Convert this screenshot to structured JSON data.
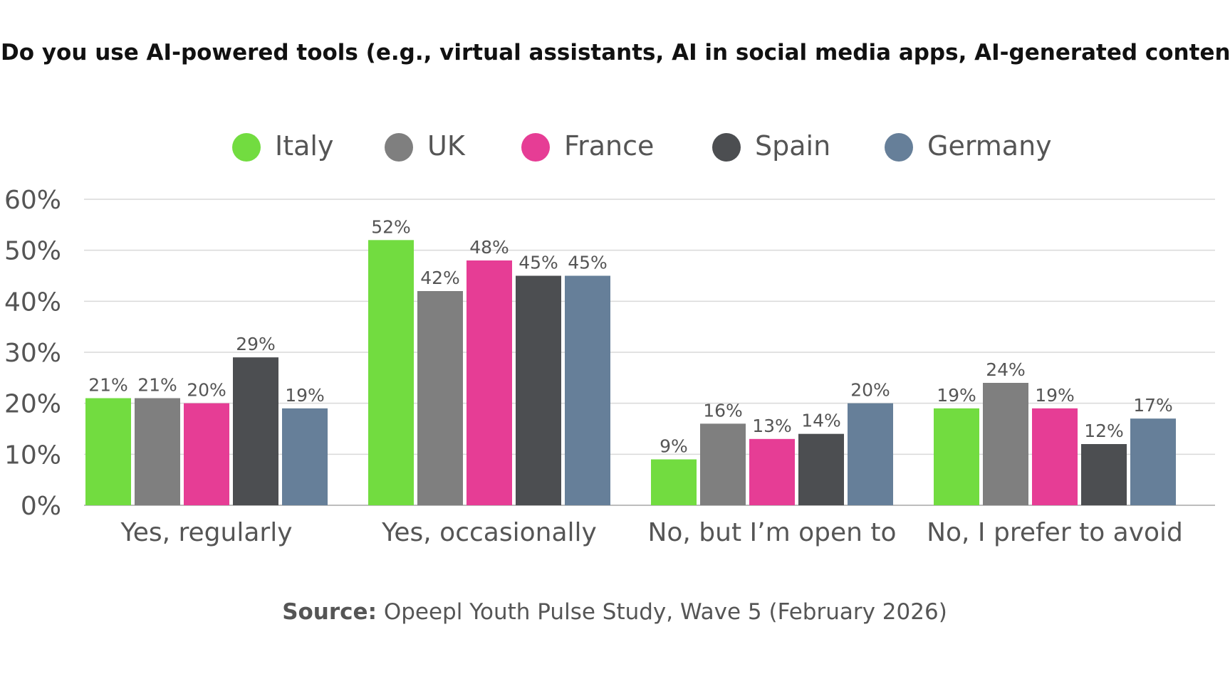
{
  "chart_data": {
    "type": "bar",
    "title": "Q: Do you use AI-powered tools (e.g., virtual assistants, AI in social media apps, AI-generated content)?",
    "categories": [
      "Yes, regularly",
      "Yes, occasionally",
      "No, but I’m open to",
      "No, I prefer to avoid"
    ],
    "series": [
      {
        "name": "Italy",
        "color": "#72dc40",
        "values": [
          21,
          52,
          9,
          19
        ]
      },
      {
        "name": "UK",
        "color": "#7f7f7f",
        "values": [
          21,
          42,
          16,
          24
        ]
      },
      {
        "name": "France",
        "color": "#e63d95",
        "values": [
          20,
          48,
          13,
          19
        ]
      },
      {
        "name": "Spain",
        "color": "#4c4e51",
        "values": [
          29,
          45,
          14,
          12
        ]
      },
      {
        "name": "Germany",
        "color": "#667f99",
        "values": [
          19,
          45,
          20,
          17
        ]
      }
    ],
    "y_ticks": [
      "0%",
      "10%",
      "20%",
      "30%",
      "40%",
      "50%",
      "60%"
    ],
    "ylim": [
      0,
      60
    ],
    "value_suffix": "%",
    "grid": true,
    "legend_position": "top"
  },
  "source": {
    "label": "Source:",
    "text": " Opeepl Youth Pulse Study, Wave 5 (February 2026)"
  }
}
